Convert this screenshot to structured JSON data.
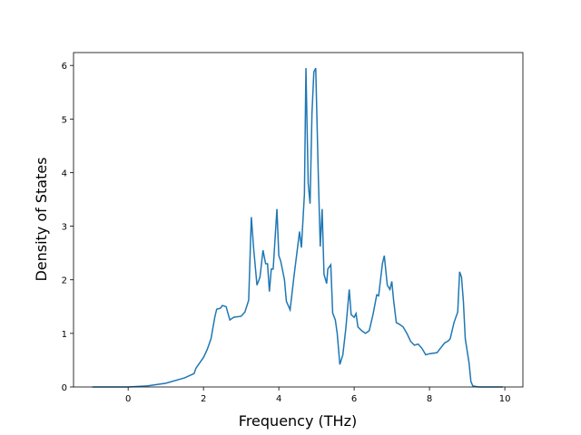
{
  "chart_data": {
    "type": "line",
    "x_label": "Frequency (THz)",
    "y_label": "Density of States",
    "x": [
      -0.95,
      0,
      0.5,
      1,
      1.5,
      1.75,
      1.8,
      2.0,
      2.1,
      2.2,
      2.3,
      2.35,
      2.45,
      2.5,
      2.6,
      2.7,
      2.8,
      3.0,
      3.1,
      3.2,
      3.27,
      3.33,
      3.42,
      3.5,
      3.58,
      3.65,
      3.7,
      3.75,
      3.8,
      3.85,
      3.95,
      4.0,
      4.05,
      4.15,
      4.2,
      4.3,
      4.4,
      4.55,
      4.6,
      4.68,
      4.72,
      4.78,
      4.83,
      4.88,
      4.93,
      4.98,
      5.05,
      5.1,
      5.15,
      5.2,
      5.27,
      5.3,
      5.38,
      5.43,
      5.5,
      5.55,
      5.62,
      5.7,
      5.78,
      5.87,
      5.92,
      6.0,
      6.05,
      6.1,
      6.2,
      6.3,
      6.4,
      6.5,
      6.6,
      6.65,
      6.75,
      6.8,
      6.88,
      6.95,
      7.0,
      7.05,
      7.12,
      7.2,
      7.3,
      7.4,
      7.5,
      7.6,
      7.7,
      7.8,
      7.9,
      8.0,
      8.2,
      8.3,
      8.4,
      8.5,
      8.55,
      8.65,
      8.75,
      8.8,
      8.85,
      8.9,
      8.95,
      9.05,
      9.1,
      9.15,
      9.3,
      9.95
    ],
    "series": [
      {
        "color": "#1f77b4",
        "values": [
          0,
          0,
          0.02,
          0.07,
          0.17,
          0.25,
          0.35,
          0.55,
          0.7,
          0.9,
          1.3,
          1.45,
          1.47,
          1.52,
          1.5,
          1.25,
          1.3,
          1.32,
          1.4,
          1.62,
          3.17,
          2.6,
          1.9,
          2.05,
          2.55,
          2.3,
          2.3,
          1.78,
          2.2,
          2.2,
          3.32,
          2.45,
          2.35,
          2.0,
          1.6,
          1.44,
          2.05,
          2.9,
          2.6,
          3.6,
          5.95,
          3.8,
          3.42,
          5.1,
          5.88,
          5.95,
          3.9,
          2.62,
          3.32,
          2.1,
          1.93,
          2.2,
          2.28,
          1.38,
          1.25,
          1.0,
          0.42,
          0.6,
          1.1,
          1.82,
          1.35,
          1.3,
          1.37,
          1.12,
          1.05,
          1.0,
          1.05,
          1.35,
          1.72,
          1.7,
          2.3,
          2.45,
          1.9,
          1.82,
          1.97,
          1.6,
          1.2,
          1.17,
          1.12,
          1.0,
          0.85,
          0.78,
          0.8,
          0.72,
          0.6,
          0.62,
          0.64,
          0.73,
          0.82,
          0.86,
          0.9,
          1.2,
          1.4,
          2.15,
          2.05,
          1.6,
          0.9,
          0.45,
          0.1,
          0.02,
          0,
          0
        ]
      }
    ],
    "xlim": [
      -1.45,
      10.48
    ],
    "ylim": [
      0,
      6.24
    ],
    "xticks": [
      0,
      2,
      4,
      6,
      8,
      10
    ],
    "yticks": [
      0,
      1,
      2,
      3,
      4,
      5,
      6
    ]
  }
}
